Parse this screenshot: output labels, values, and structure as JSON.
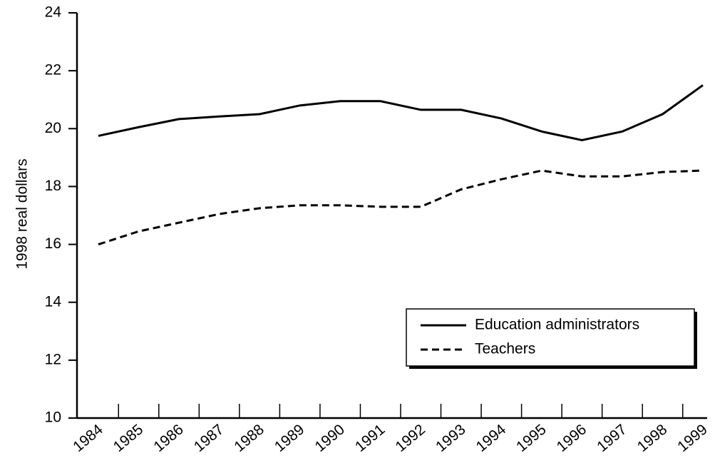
{
  "chart_data": {
    "type": "line",
    "y_label": "1998 real dollars",
    "categories": [
      "1984",
      "1985",
      "1986",
      "1987",
      "1988",
      "1989",
      "1990",
      "1991",
      "1992",
      "1993",
      "1994",
      "1995",
      "1996",
      "1997",
      "1998",
      "1999"
    ],
    "series": [
      {
        "name": "Education administrators",
        "color": "#000000",
        "line_style": "solid",
        "values": [
          19.75,
          20.05,
          20.33,
          20.42,
          20.5,
          20.8,
          20.95,
          20.95,
          20.65,
          20.65,
          20.35,
          19.9,
          19.6,
          19.9,
          20.5,
          21.5
        ]
      },
      {
        "name": "Teachers",
        "color": "#000000",
        "line_style": "dashed",
        "values": [
          16.0,
          16.45,
          16.75,
          17.05,
          17.25,
          17.35,
          17.35,
          17.3,
          17.3,
          17.9,
          18.25,
          18.55,
          18.35,
          18.35,
          18.5,
          18.55
        ]
      }
    ],
    "ylim": [
      10,
      24
    ],
    "yticks": [
      10,
      12,
      14,
      16,
      18,
      20,
      22,
      24
    ],
    "grid": false,
    "legend": "lower right"
  }
}
